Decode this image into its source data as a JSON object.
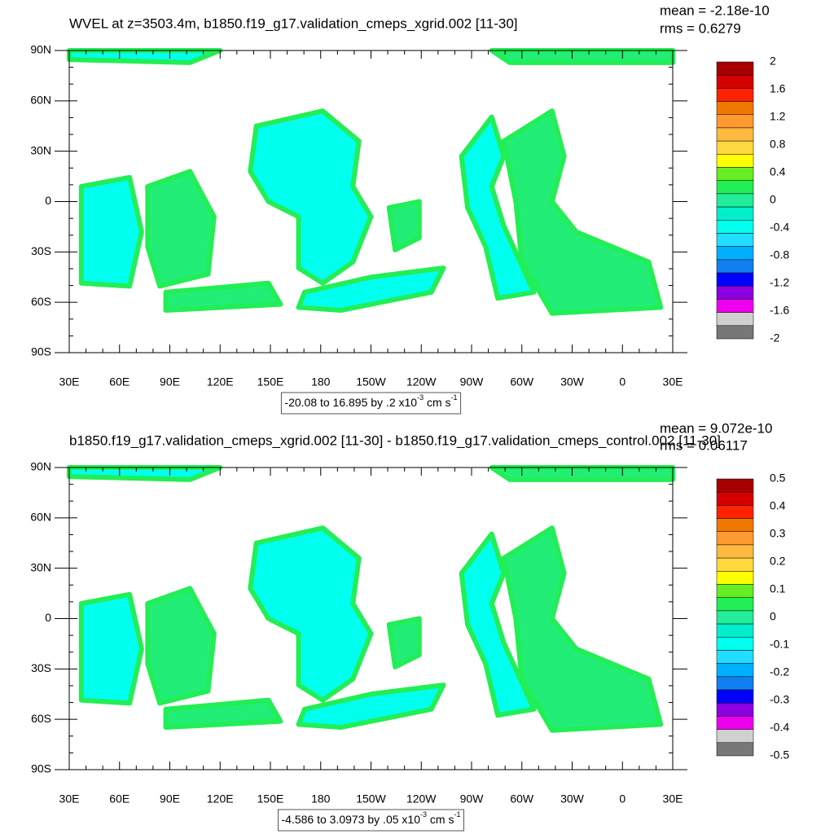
{
  "panels": [
    {
      "title": "WVEL at z=3503.4m, b1850.f19_g17.validation_cmeps_xgrid.002 [11-30]",
      "mean": "mean = -2.18e-10",
      "rms": "rms = 0.6279",
      "x_labels": [
        "30E",
        "60E",
        "90E",
        "120E",
        "150E",
        "180",
        "150W",
        "120W",
        "90W",
        "60W",
        "30W",
        "0",
        "30E"
      ],
      "y_labels": [
        "90N",
        "60N",
        "30N",
        "0",
        "30S",
        "60S",
        "90S"
      ],
      "colorbar_labels": [
        "2",
        "1.6",
        "1.2",
        "0.8",
        "0.4",
        "0",
        "-0.4",
        "-0.8",
        "-1.2",
        "-1.6",
        "-2"
      ],
      "range": [
        "-20.08 to 16.895 by .2 x10",
        "-3",
        " cm s",
        "-1"
      ]
    },
    {
      "title": "b1850.f19_g17.validation_cmeps_xgrid.002 [11-30] - b1850.f19_g17.validation_cmeps_control.002 [11-30]",
      "mean": "mean = 9.072e-10",
      "rms": "rms = 0.06117",
      "x_labels": [
        "30E",
        "60E",
        "90E",
        "120E",
        "150E",
        "180",
        "150W",
        "120W",
        "90W",
        "60W",
        "30W",
        "0",
        "30E"
      ],
      "y_labels": [
        "90N",
        "60N",
        "30N",
        "0",
        "30S",
        "60S",
        "90S"
      ],
      "colorbar_labels": [
        "0.5",
        "0.4",
        "0.3",
        "0.2",
        "0.1",
        "0",
        "-0.1",
        "-0.2",
        "-0.3",
        "-0.4",
        "-0.5"
      ],
      "range": [
        "-4.586 to 3.0973 by .05 x10",
        "-3",
        " cm s",
        "-1"
      ]
    }
  ],
  "colorbar_colors": [
    "#a80000",
    "#d50000",
    "#ff2200",
    "#f07800",
    "#ff9a30",
    "#ffb840",
    "#ffd840",
    "#ffff00",
    "#66ee22",
    "#22ee55",
    "#22ee99",
    "#00eecc",
    "#00ffee",
    "#22ddff",
    "#00b0ff",
    "#1080f0",
    "#0000ff",
    "#8a00e0",
    "#ee00ee",
    "#d0d0d0",
    "#777777"
  ]
}
